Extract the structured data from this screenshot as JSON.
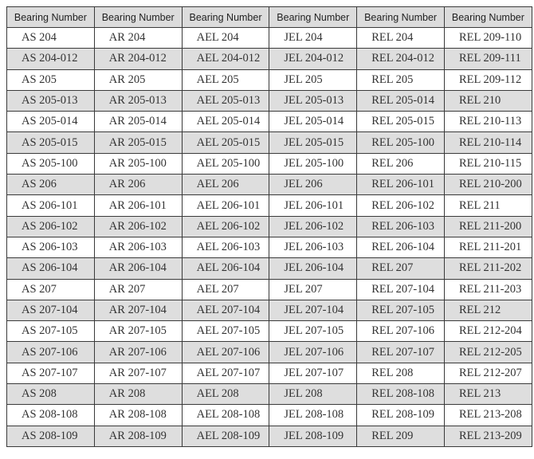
{
  "table": {
    "headers": [
      "Bearing Number",
      "Bearing Number",
      "Bearing Number",
      "Bearing Number",
      "Bearing Number",
      "Bearing Number"
    ],
    "rows": [
      [
        "AS 204",
        "AR 204",
        "AEL 204",
        "JEL 204",
        "REL 204",
        "REL 209-110"
      ],
      [
        "AS 204-012",
        "AR 204-012",
        "AEL 204-012",
        "JEL 204-012",
        "REL 204-012",
        "REL 209-111"
      ],
      [
        "AS 205",
        "AR 205",
        "AEL 205",
        "JEL 205",
        "REL 205",
        "REL 209-112"
      ],
      [
        "AS 205-013",
        "AR 205-013",
        "AEL 205-013",
        "JEL 205-013",
        "REL 205-014",
        "REL 210"
      ],
      [
        "AS 205-014",
        "AR 205-014",
        "AEL 205-014",
        "JEL 205-014",
        "REL 205-015",
        "REL 210-113"
      ],
      [
        "AS 205-015",
        "AR 205-015",
        "AEL 205-015",
        "JEL 205-015",
        "REL 205-100",
        "REL 210-114"
      ],
      [
        "AS 205-100",
        "AR 205-100",
        "AEL 205-100",
        "JEL 205-100",
        "REL 206",
        "REL 210-115"
      ],
      [
        "AS 206",
        "AR 206",
        "AEL 206",
        "JEL 206",
        "REL 206-101",
        "REL 210-200"
      ],
      [
        "AS 206-101",
        "AR 206-101",
        "AEL 206-101",
        "JEL 206-101",
        "REL 206-102",
        "REL 211"
      ],
      [
        "AS 206-102",
        "AR 206-102",
        "AEL 206-102",
        "JEL 206-102",
        "REL 206-103",
        "REL 211-200"
      ],
      [
        "AS 206-103",
        "AR 206-103",
        "AEL 206-103",
        "JEL 206-103",
        "REL 206-104",
        "REL 211-201"
      ],
      [
        "AS 206-104",
        "AR 206-104",
        "AEL 206-104",
        "JEL 206-104",
        "REL 207",
        "REL 211-202"
      ],
      [
        "AS 207",
        "AR 207",
        "AEL 207",
        "JEL 207",
        "REL 207-104",
        "REL 211-203"
      ],
      [
        "AS 207-104",
        "AR 207-104",
        "AEL 207-104",
        "JEL 207-104",
        "REL 207-105",
        "REL 212"
      ],
      [
        "AS 207-105",
        "AR 207-105",
        "AEL 207-105",
        "JEL 207-105",
        "REL 207-106",
        "REL 212-204"
      ],
      [
        "AS 207-106",
        "AR 207-106",
        "AEL 207-106",
        "JEL 207-106",
        "REL 207-107",
        "REL 212-205"
      ],
      [
        "AS 207-107",
        "AR 207-107",
        "AEL 207-107",
        "JEL 207-107",
        "REL 208",
        "REL 212-207"
      ],
      [
        "AS 208",
        "AR 208",
        "AEL 208",
        "JEL 208",
        "REL 208-108",
        "REL 213"
      ],
      [
        "AS 208-108",
        "AR 208-108",
        "AEL 208-108",
        "JEL 208-108",
        "REL 208-109",
        "REL 213-208"
      ],
      [
        "AS 208-109",
        "AR 208-109",
        "AEL 208-109",
        "JEL 208-109",
        "REL 209",
        "REL 213-209"
      ]
    ]
  },
  "colors": {
    "header_bg": "#dcdcdc",
    "alt_row_bg": "#dedede",
    "border": "#3a3a3a"
  }
}
